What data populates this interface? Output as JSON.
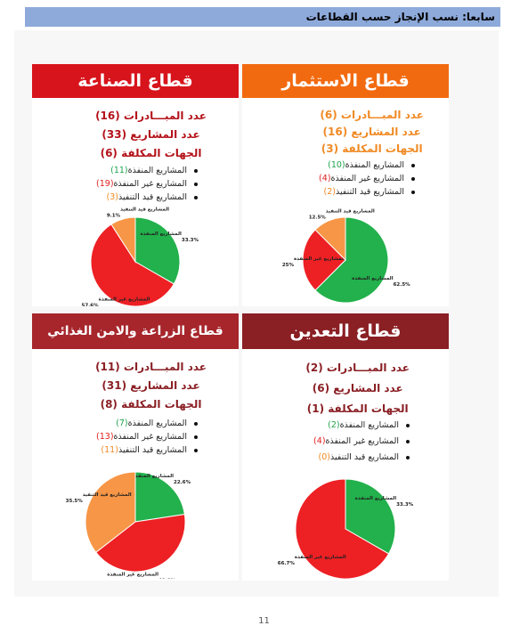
{
  "header": {
    "title": "سابعا: نسب الإنجاز حسب القطاعات"
  },
  "page_number": "11",
  "panels": {
    "investment": {
      "title": "قطاع الاستثمار",
      "initiatives": "عدد المبـــادرات (6)",
      "projects": "عدد المشاريع (16)",
      "entities": "الجهات المكلفة (3)",
      "b1_text": "المشاريع المنفذة",
      "b1_num": "(10)",
      "b2_text": "المشاريع غير المنفذة",
      "b2_num": "(4)",
      "b3_text": "المشاريع قيد التنفيذ",
      "b3_num": "(2)",
      "pie": [
        {
          "label": "المشاريع المنفذة",
          "value": 62.5,
          "pct": "62.5%",
          "color": "#22b14c"
        },
        {
          "label": "المشاريع غير المنفذة",
          "value": 25,
          "pct": "25%",
          "color": "#ed2024"
        },
        {
          "label": "المشاريع قيد التنفيذ",
          "value": 12.5,
          "pct": "12.5%",
          "color": "#f79646"
        }
      ]
    },
    "industry": {
      "title": "قطاع الصناعة",
      "initiatives": "عدد المبـــادرات (16)",
      "projects": "عدد المشاريع (33)",
      "entities": "الجهات المكلفة (6)",
      "b1_text": "المشاريع المنفذة",
      "b1_num": "(11)",
      "b2_text": "المشاريع غير المنفذة",
      "b2_num": "(19)",
      "b3_text": "المشاريع قيد التنفيذ",
      "b3_num": "(3)",
      "pie": [
        {
          "label": "المشاريع المنفذة",
          "value": 33.3,
          "pct": "33.3%",
          "color": "#22b14c"
        },
        {
          "label": "المشاريع غير المنفذة",
          "value": 57.6,
          "pct": "57.6%",
          "color": "#ed2024"
        },
        {
          "label": "المشاريع قيد التنفيذ",
          "value": 9.1,
          "pct": "9.1%",
          "color": "#f79646"
        }
      ]
    },
    "mining": {
      "title": "قطاع التعدين",
      "initiatives": "عدد المبـــادرات (2)",
      "projects": "عدد المشاريع (6)",
      "entities": "الجهات المكلفة (1)",
      "b1_text": "المشاريع المنفذة",
      "b1_num": "(2)",
      "b2_text": "المشاريع غير المنفذة",
      "b2_num": "(4)",
      "b3_text": "المشاريع قيد التنفيذ",
      "b3_num": "(0)",
      "pie": [
        {
          "label": "المشاريع المنفذة",
          "value": 33.3,
          "pct": "33.3%",
          "color": "#22b14c"
        },
        {
          "label": "المشاريع غير المنفذة",
          "value": 66.7,
          "pct": "66.7%",
          "color": "#ed2024"
        }
      ]
    },
    "agriculture": {
      "title": "قطاع الزراعة والامن الغذائي",
      "initiatives": "عدد المبـــادرات (11)",
      "projects": "عدد المشاريع (31)",
      "entities": "الجهات المكلفة (8)",
      "b1_text": "المشاريع المنفذة",
      "b1_num": "(7)",
      "b2_text": "المشاريع غير المنفذة",
      "b2_num": "(13)",
      "b3_text": "المشاريع قيد التنفيذ",
      "b3_num": "(11)",
      "pie": [
        {
          "label": "المشاريع المنفذة",
          "value": 22.6,
          "pct": "22.6%",
          "color": "#22b14c"
        },
        {
          "label": "المشاريع غير المنفذة",
          "value": 41.9,
          "pct": "41.9%",
          "color": "#ed2024"
        },
        {
          "label": "المشاريع قيد التنفيذ",
          "value": 35.5,
          "pct": "35.5%",
          "color": "#f79646"
        }
      ]
    }
  },
  "chart_data": [
    {
      "type": "pie",
      "categories": [
        "المشاريع المنفذة",
        "المشاريع غير المنفذة",
        "المشاريع قيد التنفيذ"
      ],
      "values": [
        62.5,
        25,
        12.5
      ]
    },
    {
      "type": "pie",
      "categories": [
        "المشاريع المنفذة",
        "المشاريع غير المنفذة",
        "المشاريع قيد التنفيذ"
      ],
      "values": [
        33.3,
        57.6,
        9.1
      ]
    },
    {
      "type": "pie",
      "categories": [
        "المشاريع المنفذة",
        "المشاريع غير المنفذة"
      ],
      "values": [
        33.3,
        66.7
      ]
    },
    {
      "type": "pie",
      "categories": [
        "المشاريع المنفذة",
        "المشاريع غير المنفذة",
        "المشاريع قيد التنفيذ"
      ],
      "values": [
        22.6,
        41.9,
        35.5
      ]
    }
  ]
}
